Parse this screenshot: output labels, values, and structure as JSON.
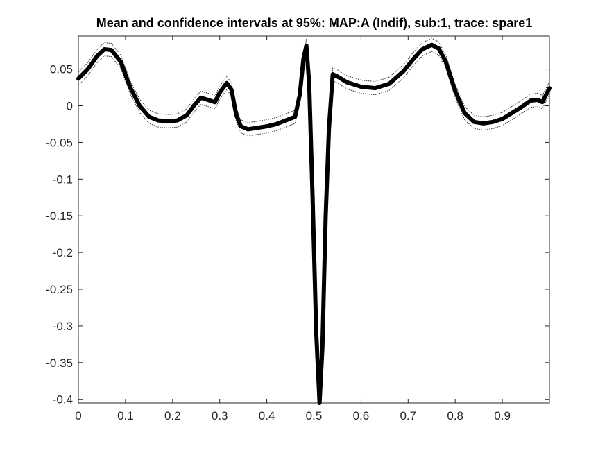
{
  "chart_data": {
    "type": "line",
    "title": "Mean and confidence intervals at 95%: MAP:A (Indif), sub:1, trace: spare1",
    "xlabel": "",
    "ylabel": "",
    "xlim": [
      0,
      1
    ],
    "ylim": [
      -0.405,
      0.095
    ],
    "grid": false,
    "x_ticks": [
      0,
      0.1,
      0.2,
      0.3,
      0.4,
      0.5,
      0.6,
      0.7,
      0.8,
      0.9
    ],
    "x_tick_labels": [
      "0",
      "0.1",
      "0.2",
      "0.3",
      "0.4",
      "0.5",
      "0.6",
      "0.7",
      "0.8",
      "0.9"
    ],
    "y_ticks": [
      0.05,
      0,
      -0.05,
      -0.1,
      -0.15,
      -0.2,
      -0.25,
      -0.3,
      -0.35,
      -0.4
    ],
    "y_tick_labels": [
      "0.05",
      "0",
      "-0.05",
      "-0.1",
      "-0.15",
      "-0.2",
      "-0.25",
      "-0.3",
      "-0.35",
      "-0.4"
    ],
    "colors": {
      "mean": "#000000",
      "ci": "#333333",
      "axis": "#262626"
    },
    "ci_halfwidth": 0.009,
    "series": [
      {
        "style": "thick-solid",
        "x": [
          0,
          0.02,
          0.04,
          0.055,
          0.07,
          0.09,
          0.11,
          0.13,
          0.15,
          0.17,
          0.19,
          0.21,
          0.23,
          0.245,
          0.26,
          0.275,
          0.29,
          0.3,
          0.315,
          0.325,
          0.335,
          0.345,
          0.36,
          0.38,
          0.4,
          0.42,
          0.44,
          0.46,
          0.47,
          0.478,
          0.484,
          0.49,
          0.497,
          0.505,
          0.512,
          0.518,
          0.525,
          0.532,
          0.54,
          0.55,
          0.57,
          0.6,
          0.63,
          0.66,
          0.69,
          0.71,
          0.73,
          0.75,
          0.765,
          0.78,
          0.8,
          0.82,
          0.84,
          0.86,
          0.88,
          0.9,
          0.92,
          0.94,
          0.96,
          0.975,
          0.985,
          1.0
        ],
        "y": [
          0.037,
          0.05,
          0.068,
          0.077,
          0.076,
          0.06,
          0.025,
          0.0,
          -0.015,
          -0.02,
          -0.021,
          -0.02,
          -0.013,
          0.0,
          0.011,
          0.008,
          0.005,
          0.018,
          0.031,
          0.022,
          -0.012,
          -0.028,
          -0.032,
          -0.03,
          -0.028,
          -0.025,
          -0.02,
          -0.015,
          0.015,
          0.065,
          0.082,
          0.03,
          -0.12,
          -0.31,
          -0.405,
          -0.33,
          -0.15,
          -0.03,
          0.043,
          0.04,
          0.032,
          0.026,
          0.024,
          0.03,
          0.047,
          0.063,
          0.077,
          0.083,
          0.078,
          0.06,
          0.02,
          -0.01,
          -0.022,
          -0.024,
          -0.022,
          -0.018,
          -0.01,
          -0.002,
          0.007,
          0.008,
          0.005,
          0.024
        ]
      }
    ]
  }
}
